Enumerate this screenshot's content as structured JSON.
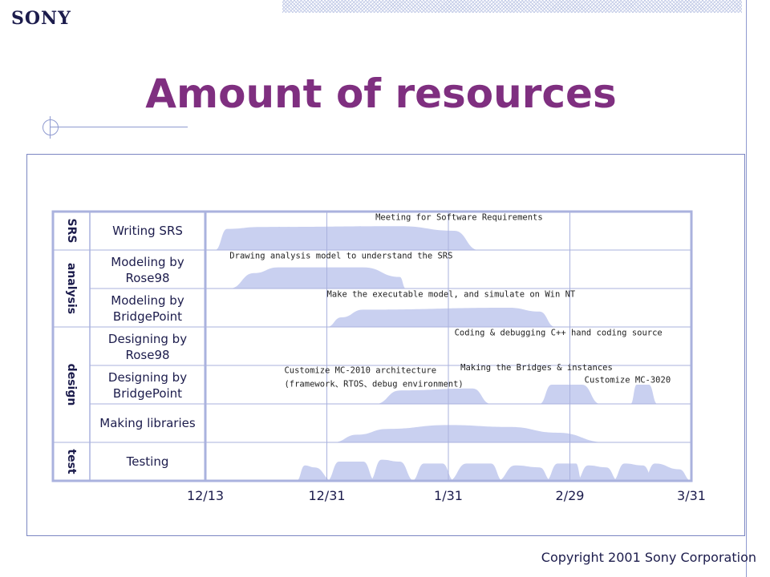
{
  "logo": "SONY",
  "title": "Amount of resources",
  "copyright": "Copyright 2001 Sony Corporation",
  "colors": {
    "title": "#7f2f80",
    "frame": "#7b86c2",
    "fill": "#c9d0f0",
    "grid": "#aab2de",
    "text": "#1c1c4c"
  },
  "chart_data": {
    "type": "area",
    "x_ticks": [
      "12/13",
      "12/31",
      "1/31",
      "2/29",
      "3/31"
    ],
    "phases": [
      {
        "label": "SRS",
        "rows": [
          0,
          0
        ]
      },
      {
        "label": "analysis",
        "rows": [
          1,
          2
        ]
      },
      {
        "label": "design",
        "rows": [
          3,
          5
        ]
      },
      {
        "label": "test",
        "rows": [
          6,
          6
        ]
      }
    ],
    "rows": [
      {
        "label": "Writing SRS",
        "annotations": [
          {
            "text": "Meeting for Software Requirements",
            "x": 1.4,
            "level": 0.78
          }
        ],
        "shapes": [
          [
            [
              0.08,
              0
            ],
            [
              0.18,
              0.55
            ],
            [
              0.45,
              0.6
            ],
            [
              1.6,
              0.62
            ],
            [
              2.05,
              0.5
            ],
            [
              2.25,
              0
            ]
          ]
        ]
      },
      {
        "label": "Modeling by Rose98",
        "annotations": [
          {
            "text": "Drawing analysis model to understand the SRS",
            "x": 0.2,
            "level": 0.78
          }
        ],
        "shapes": [
          [
            [
              0.2,
              0
            ],
            [
              0.4,
              0.4
            ],
            [
              0.6,
              0.55
            ],
            [
              1.3,
              0.55
            ],
            [
              1.6,
              0.3
            ],
            [
              1.65,
              0
            ]
          ]
        ]
      },
      {
        "label": "Modeling by BridgePoint",
        "annotations": [
          {
            "text": "Make the executable model, and simulate on Win NT",
            "x": 1.0,
            "level": 0.78
          }
        ],
        "shapes": [
          [
            [
              1.0,
              0
            ],
            [
              1.12,
              0.25
            ],
            [
              1.3,
              0.45
            ],
            [
              2.5,
              0.5
            ],
            [
              2.75,
              0.4
            ],
            [
              2.88,
              0
            ]
          ]
        ]
      },
      {
        "label": "Designing by Rose98",
        "annotations": [
          {
            "text": "Coding & debugging C++ hand coding source",
            "x": 2.05,
            "level": 0.78
          }
        ],
        "shapes": []
      },
      {
        "label": "Designing by BridgePoint",
        "annotations": [
          {
            "text": "Customize MC-2010 architecture",
            "x": 0.65,
            "level": 0.8
          },
          {
            "text": "(framework、RTOS、debug environment)",
            "x": 0.65,
            "level": 0.45
          },
          {
            "text": "Making the Bridges & instances",
            "x": 2.1,
            "level": 0.88
          },
          {
            "text": "Customize MC-3020",
            "x": 3.12,
            "level": 0.55
          }
        ],
        "shapes": [
          [
            [
              1.4,
              0
            ],
            [
              1.6,
              0.35
            ],
            [
              2.2,
              0.4
            ],
            [
              2.35,
              0
            ]
          ],
          [
            [
              2.75,
              0
            ],
            [
              2.85,
              0.5
            ],
            [
              3.1,
              0.5
            ],
            [
              3.25,
              0
            ]
          ],
          [
            [
              3.5,
              0
            ],
            [
              3.55,
              0.5
            ],
            [
              3.65,
              0.5
            ],
            [
              3.72,
              0
            ]
          ]
        ]
      },
      {
        "label": "Making libraries",
        "annotations": [],
        "shapes": [
          [
            [
              1.05,
              0
            ],
            [
              1.25,
              0.2
            ],
            [
              1.5,
              0.35
            ],
            [
              2.0,
              0.45
            ],
            [
              2.5,
              0.4
            ],
            [
              2.9,
              0.25
            ],
            [
              3.3,
              0
            ]
          ]
        ]
      },
      {
        "label": "Testing",
        "annotations": [],
        "shapes": [
          [
            [
              0.75,
              0
            ],
            [
              0.82,
              0.4
            ],
            [
              0.9,
              0.35
            ],
            [
              1.05,
              0
            ]
          ],
          [
            [
              1.0,
              0
            ],
            [
              1.1,
              0.5
            ],
            [
              1.3,
              0.5
            ],
            [
              1.4,
              0
            ]
          ],
          [
            [
              1.35,
              0
            ],
            [
              1.45,
              0.55
            ],
            [
              1.6,
              0.5
            ],
            [
              1.72,
              0
            ]
          ],
          [
            [
              1.7,
              0
            ],
            [
              1.8,
              0.45
            ],
            [
              1.95,
              0.45
            ],
            [
              2.05,
              0
            ]
          ],
          [
            [
              2.0,
              0
            ],
            [
              2.15,
              0.45
            ],
            [
              2.35,
              0.45
            ],
            [
              2.45,
              0
            ]
          ],
          [
            [
              2.4,
              0
            ],
            [
              2.55,
              0.4
            ],
            [
              2.75,
              0.35
            ],
            [
              2.85,
              0
            ]
          ],
          [
            [
              2.8,
              0
            ],
            [
              2.9,
              0.45
            ],
            [
              3.05,
              0.45
            ],
            [
              3.1,
              0
            ]
          ],
          [
            [
              3.05,
              0
            ],
            [
              3.15,
              0.4
            ],
            [
              3.3,
              0.35
            ],
            [
              3.4,
              0
            ]
          ],
          [
            [
              3.35,
              0
            ],
            [
              3.45,
              0.45
            ],
            [
              3.6,
              0.4
            ],
            [
              3.7,
              0
            ]
          ],
          [
            [
              3.6,
              0
            ],
            [
              3.7,
              0.45
            ],
            [
              3.9,
              0.3
            ],
            [
              4.0,
              0
            ]
          ]
        ]
      }
    ]
  }
}
